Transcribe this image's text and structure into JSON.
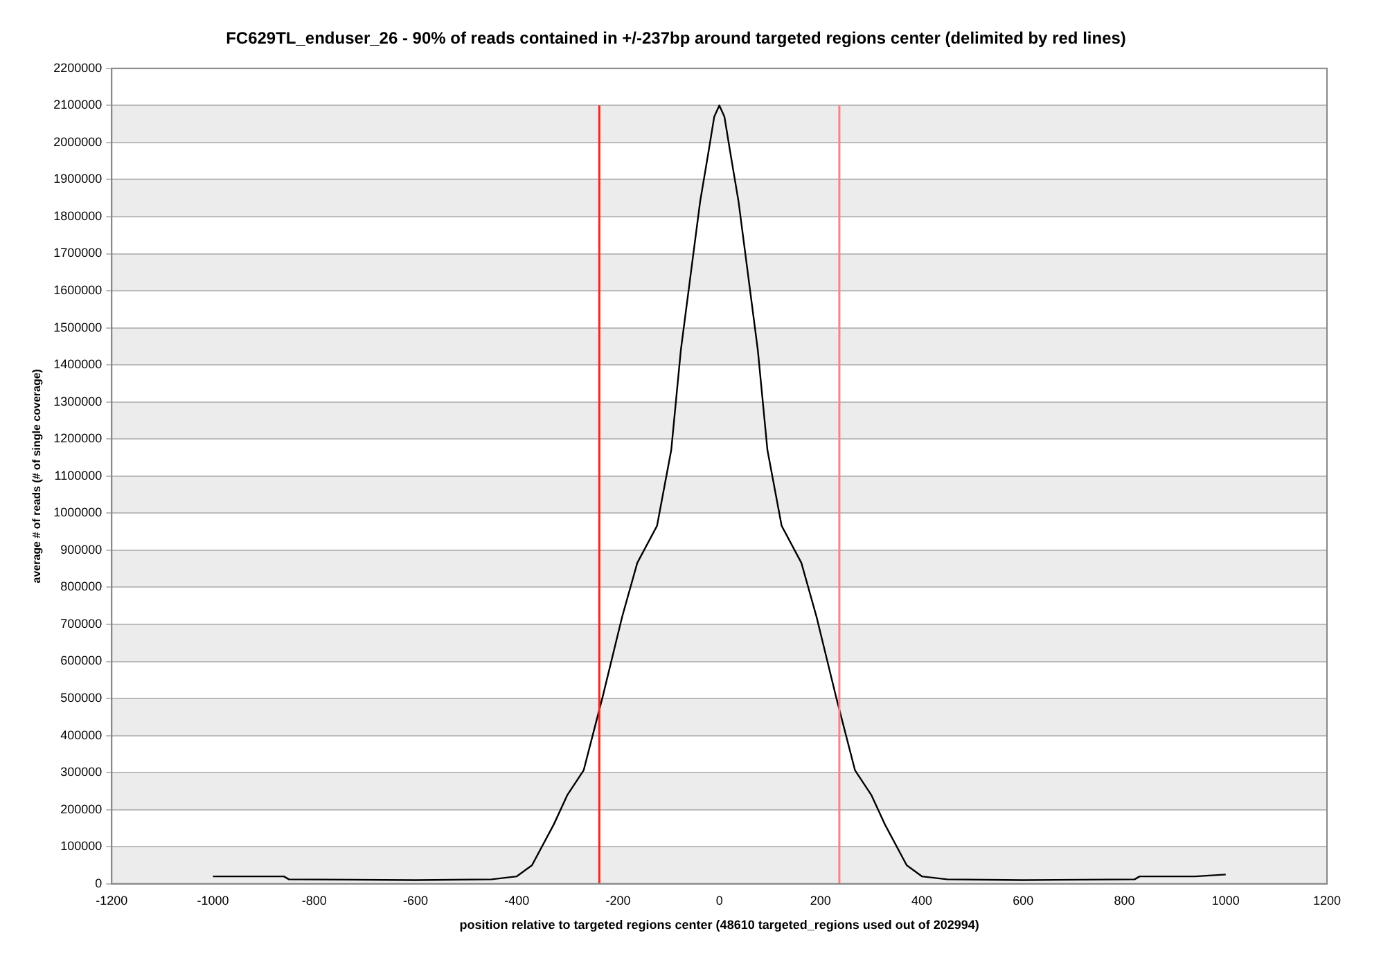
{
  "chart_data": {
    "type": "line",
    "title": "FC629TL_enduser_26 - 90% of reads contained in +/-237bp around targeted regions center (delimited by red lines)",
    "xlabel": "position relative to targeted regions center (48610 targeted_regions used out of 202994)",
    "ylabel": "average # of reads (# of single coverage)",
    "x": [
      -1000,
      -860,
      -850,
      -600,
      -450,
      -400,
      -370,
      -327,
      -300,
      -268,
      -237,
      -230,
      -192,
      -162,
      -123,
      -95,
      -76,
      -57,
      -38,
      -22,
      -10,
      0,
      10,
      22,
      38,
      57,
      76,
      95,
      123,
      162,
      192,
      230,
      237,
      268,
      300,
      327,
      370,
      400,
      450,
      600,
      820,
      830,
      940,
      1000
    ],
    "series": [
      {
        "color": "#000000",
        "values": [
          20000,
          20000,
          12000,
          10000,
          12000,
          20000,
          50000,
          160000,
          240000,
          306000,
          470000,
          507000,
          720000,
          866000,
          966000,
          1170000,
          1440000,
          1640000,
          1840000,
          1970000,
          2070000,
          2100000,
          2070000,
          1970000,
          1840000,
          1640000,
          1440000,
          1170000,
          966000,
          866000,
          720000,
          507000,
          470000,
          306000,
          240000,
          160000,
          50000,
          20000,
          12000,
          10000,
          12000,
          20000,
          20000,
          25000
        ]
      }
    ],
    "xlim": [
      -1200,
      1200
    ],
    "xticks": [
      -1200,
      -1000,
      -800,
      -600,
      -400,
      -200,
      0,
      200,
      400,
      600,
      800,
      1000,
      1200
    ],
    "ylim": [
      0,
      2200000
    ],
    "yticks": [
      0,
      100000,
      200000,
      300000,
      400000,
      500000,
      600000,
      700000,
      800000,
      900000,
      1000000,
      1100000,
      1200000,
      1300000,
      1400000,
      1500000,
      1600000,
      1700000,
      1800000,
      1900000,
      2000000,
      2100000,
      2200000
    ],
    "grid": "y",
    "legend": false,
    "marker": "none",
    "line_style": "solid",
    "ref_lines": [
      {
        "axis": "x",
        "value": -237,
        "color": "#ff2020"
      },
      {
        "axis": "x",
        "value": 237,
        "color": "#ff8080"
      }
    ]
  }
}
